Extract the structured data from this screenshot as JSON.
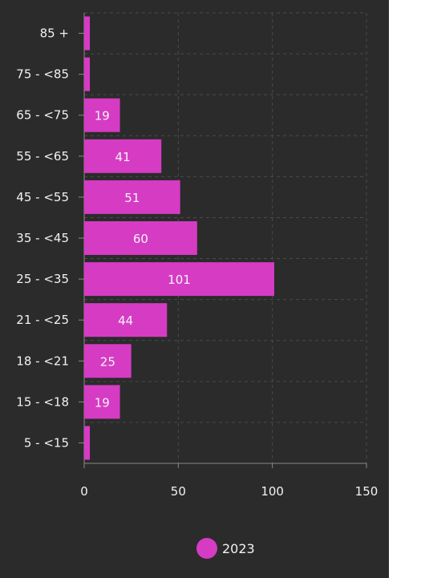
{
  "chart_data": {
    "type": "bar",
    "orientation": "horizontal",
    "categories": [
      "85 +",
      "75 - <85",
      "65 - <75",
      "55 - <65",
      "45 - <55",
      "35 - <45",
      "25 - <35",
      "21 - <25",
      "18 - <21",
      "15 - <18",
      "5 - <15"
    ],
    "series": [
      {
        "name": "2023",
        "color": "#d63bc4",
        "values": [
          3,
          3,
          19,
          41,
          51,
          60,
          101,
          44,
          25,
          19,
          3
        ],
        "data_labels": [
          "",
          "",
          "19",
          "41",
          "51",
          "60",
          "101",
          "44",
          "25",
          "19",
          ""
        ]
      }
    ],
    "xlim": [
      0,
      150
    ],
    "xticks": [
      "0",
      "50",
      "100",
      "150"
    ],
    "grid": true,
    "legend": {
      "position": "bottom-center"
    }
  }
}
